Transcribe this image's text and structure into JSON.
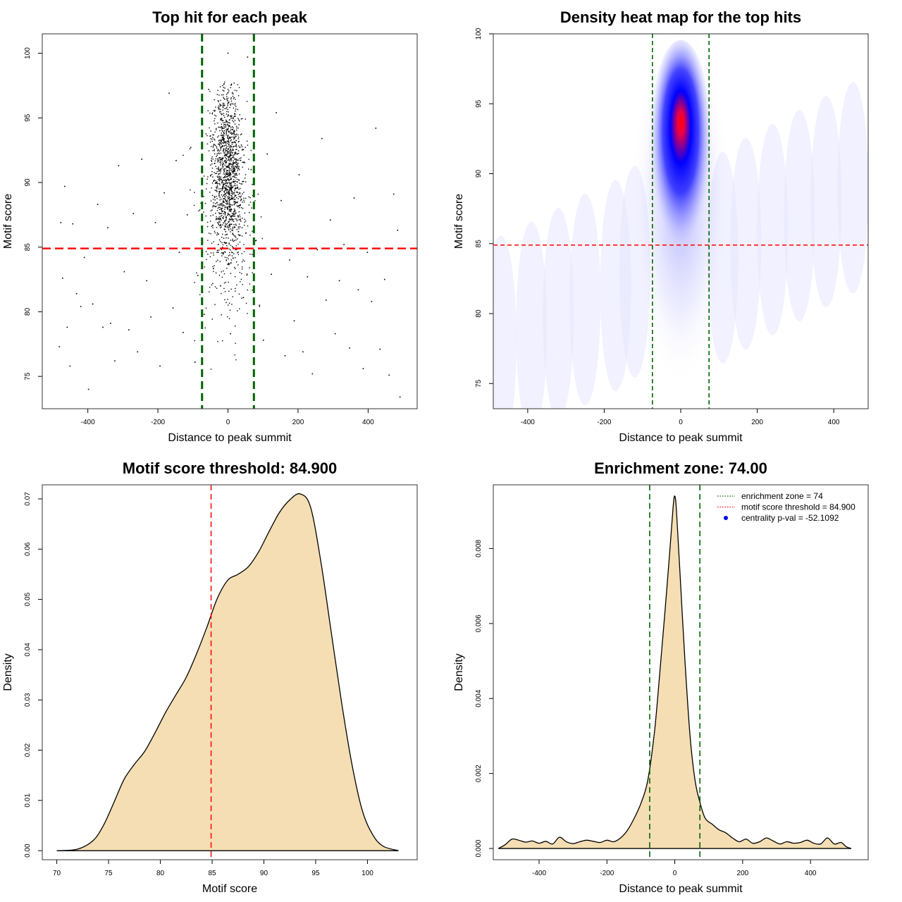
{
  "chart_data": [
    {
      "id": "p1",
      "type": "scatter",
      "title": "Top hit for each peak",
      "xlabel": "Distance to peak summit",
      "ylabel": "Motif score",
      "xlim": [
        -530,
        540
      ],
      "ylim": [
        72.5,
        101.5
      ],
      "xticks": [
        -400,
        -200,
        0,
        200,
        400
      ],
      "yticks": [
        75,
        80,
        85,
        90,
        95,
        100
      ],
      "grid": false,
      "threshold_y": 84.9,
      "zone_x": [
        -74,
        74
      ],
      "colors": {
        "points": "#000000",
        "threshold": "#ff0000",
        "zone": "#006400"
      },
      "points": [
        [
          -481,
          77.3
        ],
        [
          -477,
          86.9
        ],
        [
          -472,
          82.6
        ],
        [
          -466,
          89.7
        ],
        [
          -459,
          78.8
        ],
        [
          -451,
          75.8
        ],
        [
          -443,
          86.8
        ],
        [
          -432,
          81.4
        ],
        [
          -420,
          80.4
        ],
        [
          -410,
          84.2
        ],
        [
          -398,
          74.0
        ],
        [
          -386,
          80.6
        ],
        [
          -372,
          88.3
        ],
        [
          -357,
          78.8
        ],
        [
          -343,
          86.5
        ],
        [
          -335,
          79.1
        ],
        [
          -323,
          76.2
        ],
        [
          -312,
          91.3
        ],
        [
          -296,
          83.1
        ],
        [
          -283,
          78.6
        ],
        [
          -270,
          87.6
        ],
        [
          -258,
          76.9
        ],
        [
          -246,
          91.8
        ],
        [
          -232,
          82.4
        ],
        [
          -220,
          79.6
        ],
        [
          -207,
          86.9
        ],
        [
          -194,
          75.8
        ],
        [
          -182,
          89.2
        ],
        [
          -168,
          96.9
        ],
        [
          -157,
          80.3
        ],
        [
          -148,
          91.7
        ],
        [
          -139,
          84.6
        ],
        [
          -128,
          78.4
        ],
        [
          -116,
          87.5
        ],
        [
          -106,
          92.7
        ],
        [
          -94,
          76.1
        ],
        [
          -86,
          82.8
        ],
        [
          -77,
          88.4
        ],
        [
          -68,
          79.8
        ],
        [
          -55,
          97.2
        ],
        [
          -41,
          90.1
        ],
        [
          -28,
          84.6
        ],
        [
          -14,
          95.8
        ],
        [
          0,
          100.0
        ],
        [
          7,
          78.3
        ],
        [
          18,
          93.5
        ],
        [
          30,
          86.2
        ],
        [
          44,
          81.1
        ],
        [
          56,
          99.7
        ],
        [
          66,
          91.0
        ],
        [
          79,
          85.5
        ],
        [
          90,
          80.5
        ],
        [
          101,
          77.8
        ],
        [
          112,
          92.2
        ],
        [
          124,
          82.9
        ],
        [
          138,
          95.4
        ],
        [
          152,
          88.6
        ],
        [
          163,
          76.6
        ],
        [
          176,
          84.0
        ],
        [
          189,
          79.3
        ],
        [
          203,
          90.6
        ],
        [
          214,
          76.9
        ],
        [
          227,
          82.7
        ],
        [
          241,
          75.2
        ],
        [
          255,
          84.8
        ],
        [
          268,
          93.4
        ],
        [
          280,
          80.9
        ],
        [
          292,
          87.1
        ],
        [
          306,
          78.3
        ],
        [
          318,
          82.4
        ],
        [
          331,
          85.2
        ],
        [
          347,
          77.2
        ],
        [
          360,
          88.8
        ],
        [
          372,
          81.7
        ],
        [
          386,
          75.6
        ],
        [
          398,
          84.6
        ],
        [
          410,
          80.8
        ],
        [
          422,
          94.2
        ],
        [
          434,
          77.1
        ],
        [
          447,
          82.5
        ],
        [
          460,
          75.1
        ],
        [
          473,
          89.1
        ],
        [
          484,
          86.3
        ],
        [
          491,
          73.4
        ]
      ]
    },
    {
      "id": "p2",
      "type": "heatmap",
      "title": "Density heat map for the top hits",
      "xlabel": "Distance to peak summit",
      "ylabel": "Motif score",
      "xlim": [
        -490,
        490
      ],
      "ylim": [
        73.2,
        100.0
      ],
      "xticks": [
        -400,
        -200,
        0,
        200,
        400
      ],
      "yticks": [
        75,
        80,
        85,
        90,
        95,
        100
      ],
      "grid": false,
      "threshold_y": 84.9,
      "zone_x": [
        -74,
        74
      ],
      "colors": {
        "low": "#ffffff",
        "mid": "#0000ff",
        "high": "#ff0000",
        "threshold": "#ff0000",
        "zone": "#006400"
      },
      "density_peak": {
        "x": 0,
        "y": 93.3
      }
    },
    {
      "id": "p3",
      "type": "area",
      "title": "Motif score threshold: 84.900",
      "xlabel": "Motif score",
      "ylabel": "Density",
      "xlim": [
        68.6,
        104.8
      ],
      "ylim": [
        -0.0018,
        0.0728
      ],
      "xticks": [
        70,
        75,
        80,
        85,
        90,
        95,
        100
      ],
      "yticks": [
        0.0,
        0.01,
        0.02,
        0.03,
        0.04,
        0.05,
        0.06,
        0.07
      ],
      "ytick_labels": [
        "0.00",
        "0.01",
        "0.02",
        "0.03",
        "0.04",
        "0.05",
        "0.06",
        "0.07"
      ],
      "grid": false,
      "threshold_x": 84.9,
      "colors": {
        "fill": "#f5deb3",
        "line": "#000000",
        "threshold": "#ff0000"
      },
      "x": [
        70.0,
        72.0,
        73.5,
        74.5,
        75.5,
        76.5,
        77.5,
        78.5,
        79.5,
        80.5,
        81.5,
        82.5,
        83.5,
        84.5,
        85.5,
        86.5,
        87.5,
        88.5,
        89.5,
        90.5,
        91.5,
        92.5,
        93.5,
        94.5,
        95.5,
        96.5,
        97.5,
        98.5,
        99.5,
        100.5,
        101.5,
        103.0
      ],
      "y": [
        0.0,
        0.0003,
        0.002,
        0.005,
        0.0095,
        0.0142,
        0.0172,
        0.0198,
        0.0235,
        0.0275,
        0.031,
        0.0345,
        0.0392,
        0.0445,
        0.0502,
        0.0538,
        0.055,
        0.0565,
        0.0595,
        0.0635,
        0.0673,
        0.0698,
        0.071,
        0.0684,
        0.0575,
        0.0435,
        0.0295,
        0.0172,
        0.008,
        0.0032,
        0.0009,
        0.0
      ]
    },
    {
      "id": "p4",
      "type": "area",
      "title": "Enrichment zone: 74.00",
      "xlabel": "Distance to peak summit",
      "ylabel": "Density",
      "xlim": [
        -535,
        570
      ],
      "ylim": [
        -0.0003,
        0.0097
      ],
      "xticks": [
        -400,
        -200,
        0,
        200,
        400
      ],
      "yticks": [
        0.0,
        0.002,
        0.004,
        0.006,
        0.008
      ],
      "ytick_labels": [
        "0.000",
        "0.002",
        "0.004",
        "0.006",
        "0.008"
      ],
      "grid": false,
      "zone_x": [
        -74,
        74
      ],
      "colors": {
        "fill": "#f5deb3",
        "line": "#000000",
        "zone": "#006400",
        "threshold": "#ff0000",
        "pval": "#0000ff"
      },
      "x": [
        -520,
        -500,
        -480,
        -460,
        -440,
        -420,
        -400,
        -380,
        -360,
        -340,
        -320,
        -300,
        -280,
        -260,
        -240,
        -220,
        -200,
        -180,
        -160,
        -140,
        -120,
        -100,
        -80,
        -60,
        -45,
        -30,
        -15,
        -5,
        0,
        5,
        15,
        30,
        45,
        60,
        75,
        90,
        110,
        130,
        150,
        170,
        190,
        210,
        230,
        250,
        270,
        290,
        310,
        330,
        350,
        370,
        390,
        410,
        430,
        450,
        470,
        490,
        505,
        520
      ],
      "y": [
        0.0,
        0.0001,
        0.00025,
        0.00022,
        0.00017,
        0.0002,
        0.00014,
        0.00019,
        0.00012,
        0.0003,
        0.00018,
        0.00013,
        0.00018,
        0.00022,
        0.00019,
        0.00016,
        0.00022,
        0.00018,
        0.00028,
        0.00048,
        0.0008,
        0.0012,
        0.0018,
        0.0031,
        0.0046,
        0.0062,
        0.0079,
        0.0091,
        0.0094,
        0.009,
        0.0074,
        0.005,
        0.003,
        0.0018,
        0.0012,
        0.0008,
        0.00065,
        0.0005,
        0.00042,
        0.00028,
        0.00018,
        0.00025,
        0.00014,
        0.00018,
        0.00028,
        0.0002,
        0.00012,
        0.00018,
        0.00014,
        0.00016,
        0.00022,
        0.00014,
        0.00012,
        0.00028,
        0.00012,
        0.00016,
        5e-05,
        0.0
      ],
      "legend": {
        "placement": "top-right",
        "entries": [
          {
            "label": "enrichment zone = 74",
            "style": "dotted-line",
            "color": "#006400"
          },
          {
            "label": "motif score threshold = 84.900",
            "style": "dotted-line",
            "color": "#ff0000"
          },
          {
            "label": "centrality p-val = -52.1092",
            "style": "point",
            "color": "#0000ff"
          }
        ]
      }
    }
  ]
}
